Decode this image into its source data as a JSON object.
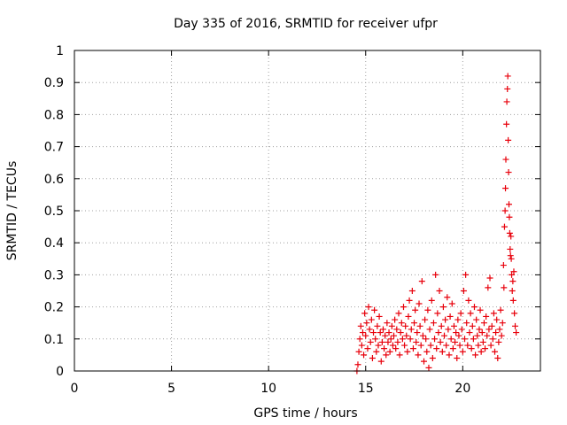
{
  "chart_data": {
    "type": "scatter",
    "title": "Day 335 of 2016, SRMTID for receiver ufpr",
    "xlabel": "GPS time / hours",
    "ylabel": "SRMTID / TECUs",
    "xlim": [
      0,
      24
    ],
    "ylim": [
      0,
      1
    ],
    "x_ticks": [
      0,
      5,
      10,
      15,
      20
    ],
    "x_tick_labels": [
      "0",
      "5",
      "10",
      "15",
      "20"
    ],
    "y_ticks": [
      0,
      0.1,
      0.2,
      0.3,
      0.4,
      0.5,
      0.6,
      0.7,
      0.8,
      0.9,
      1
    ],
    "y_tick_labels": [
      "0",
      "0.1",
      "0.2",
      "0.3",
      "0.4",
      "0.5",
      "0.6",
      "0.7",
      "0.8",
      "0.9",
      "1"
    ],
    "grid": true,
    "marker": "+",
    "series": [
      {
        "name": "SRMTID",
        "color": "#e8000b",
        "points": [
          [
            14.55,
            0.0
          ],
          [
            14.6,
            0.02
          ],
          [
            14.65,
            0.06
          ],
          [
            14.7,
            0.1
          ],
          [
            14.75,
            0.14
          ],
          [
            14.8,
            0.08
          ],
          [
            14.85,
            0.12
          ],
          [
            14.9,
            0.05
          ],
          [
            14.95,
            0.18
          ],
          [
            15.0,
            0.11
          ],
          [
            15.05,
            0.15
          ],
          [
            15.1,
            0.07
          ],
          [
            15.15,
            0.2
          ],
          [
            15.2,
            0.13
          ],
          [
            15.25,
            0.09
          ],
          [
            15.3,
            0.16
          ],
          [
            15.35,
            0.04
          ],
          [
            15.4,
            0.12
          ],
          [
            15.45,
            0.19
          ],
          [
            15.5,
            0.1
          ],
          [
            15.55,
            0.06
          ],
          [
            15.6,
            0.14
          ],
          [
            15.65,
            0.08
          ],
          [
            15.7,
            0.17
          ],
          [
            15.75,
            0.12
          ],
          [
            15.8,
            0.03
          ],
          [
            15.85,
            0.09
          ],
          [
            15.9,
            0.13
          ],
          [
            15.95,
            0.07
          ],
          [
            16.0,
            0.11
          ],
          [
            16.05,
            0.05
          ],
          [
            16.1,
            0.15
          ],
          [
            16.15,
            0.09
          ],
          [
            16.2,
            0.12
          ],
          [
            16.25,
            0.06
          ],
          [
            16.3,
            0.1
          ],
          [
            16.35,
            0.14
          ],
          [
            16.4,
            0.08
          ],
          [
            16.45,
            0.11
          ],
          [
            16.5,
            0.16
          ],
          [
            16.55,
            0.07
          ],
          [
            16.6,
            0.13
          ],
          [
            16.65,
            0.09
          ],
          [
            16.7,
            0.18
          ],
          [
            16.75,
            0.05
          ],
          [
            16.8,
            0.12
          ],
          [
            16.85,
            0.15
          ],
          [
            16.9,
            0.1
          ],
          [
            16.95,
            0.2
          ],
          [
            17.0,
            0.08
          ],
          [
            17.05,
            0.14
          ],
          [
            17.1,
            0.11
          ],
          [
            17.15,
            0.06
          ],
          [
            17.2,
            0.17
          ],
          [
            17.25,
            0.22
          ],
          [
            17.3,
            0.1
          ],
          [
            17.35,
            0.13
          ],
          [
            17.4,
            0.25
          ],
          [
            17.45,
            0.07
          ],
          [
            17.5,
            0.15
          ],
          [
            17.55,
            0.19
          ],
          [
            17.6,
            0.09
          ],
          [
            17.65,
            0.12
          ],
          [
            17.7,
            0.05
          ],
          [
            17.75,
            0.21
          ],
          [
            17.8,
            0.14
          ],
          [
            17.85,
            0.08
          ],
          [
            17.9,
            0.28
          ],
          [
            17.95,
            0.11
          ],
          [
            18.0,
            0.03
          ],
          [
            18.05,
            0.16
          ],
          [
            18.1,
            0.1
          ],
          [
            18.15,
            0.06
          ],
          [
            18.2,
            0.19
          ],
          [
            18.25,
            0.01
          ],
          [
            18.3,
            0.13
          ],
          [
            18.35,
            0.08
          ],
          [
            18.4,
            0.22
          ],
          [
            18.45,
            0.04
          ],
          [
            18.5,
            0.15
          ],
          [
            18.55,
            0.1
          ],
          [
            18.6,
            0.3
          ],
          [
            18.65,
            0.07
          ],
          [
            18.7,
            0.18
          ],
          [
            18.75,
            0.12
          ],
          [
            18.8,
            0.25
          ],
          [
            18.85,
            0.09
          ],
          [
            18.9,
            0.14
          ],
          [
            18.95,
            0.06
          ],
          [
            19.0,
            0.2
          ],
          [
            19.05,
            0.11
          ],
          [
            19.1,
            0.16
          ],
          [
            19.15,
            0.08
          ],
          [
            19.2,
            0.23
          ],
          [
            19.25,
            0.13
          ],
          [
            19.3,
            0.05
          ],
          [
            19.35,
            0.17
          ],
          [
            19.4,
            0.1
          ],
          [
            19.45,
            0.21
          ],
          [
            19.5,
            0.07
          ],
          [
            19.55,
            0.14
          ],
          [
            19.6,
            0.09
          ],
          [
            19.65,
            0.12
          ],
          [
            19.7,
            0.04
          ],
          [
            19.75,
            0.16
          ],
          [
            19.8,
            0.11
          ],
          [
            19.85,
            0.08
          ],
          [
            19.9,
            0.18
          ],
          [
            19.95,
            0.13
          ],
          [
            20.0,
            0.06
          ],
          [
            20.05,
            0.25
          ],
          [
            20.1,
            0.1
          ],
          [
            20.15,
            0.3
          ],
          [
            20.2,
            0.15
          ],
          [
            20.25,
            0.08
          ],
          [
            20.3,
            0.22
          ],
          [
            20.35,
            0.12
          ],
          [
            20.4,
            0.18
          ],
          [
            20.45,
            0.07
          ],
          [
            20.5,
            0.14
          ],
          [
            20.55,
            0.1
          ],
          [
            20.6,
            0.2
          ],
          [
            20.65,
            0.05
          ],
          [
            20.7,
            0.16
          ],
          [
            20.75,
            0.11
          ],
          [
            20.8,
            0.08
          ],
          [
            20.85,
            0.13
          ],
          [
            20.9,
            0.19
          ],
          [
            20.95,
            0.06
          ],
          [
            21.0,
            0.12
          ],
          [
            21.05,
            0.09
          ],
          [
            21.1,
            0.15
          ],
          [
            21.15,
            0.07
          ],
          [
            21.2,
            0.17
          ],
          [
            21.25,
            0.11
          ],
          [
            21.3,
            0.26
          ],
          [
            21.35,
            0.13
          ],
          [
            21.4,
            0.29
          ],
          [
            21.45,
            0.08
          ],
          [
            21.5,
            0.14
          ],
          [
            21.55,
            0.1
          ],
          [
            21.6,
            0.18
          ],
          [
            21.65,
            0.06
          ],
          [
            21.7,
            0.12
          ],
          [
            21.75,
            0.16
          ],
          [
            21.8,
            0.04
          ],
          [
            21.85,
            0.09
          ],
          [
            21.9,
            0.13
          ],
          [
            21.95,
            0.19
          ],
          [
            22.0,
            0.11
          ],
          [
            22.05,
            0.15
          ],
          [
            22.1,
            0.33
          ],
          [
            22.12,
            0.26
          ],
          [
            22.15,
            0.45
          ],
          [
            22.18,
            0.5
          ],
          [
            22.2,
            0.57
          ],
          [
            22.22,
            0.66
          ],
          [
            22.25,
            0.77
          ],
          [
            22.27,
            0.84
          ],
          [
            22.3,
            0.88
          ],
          [
            22.32,
            0.92
          ],
          [
            22.34,
            0.72
          ],
          [
            22.36,
            0.62
          ],
          [
            22.38,
            0.52
          ],
          [
            22.4,
            0.48
          ],
          [
            22.42,
            0.43
          ],
          [
            22.44,
            0.38
          ],
          [
            22.46,
            0.36
          ],
          [
            22.48,
            0.42
          ],
          [
            22.5,
            0.35
          ],
          [
            22.52,
            0.3
          ],
          [
            22.55,
            0.25
          ],
          [
            22.58,
            0.28
          ],
          [
            22.6,
            0.22
          ],
          [
            22.63,
            0.31
          ],
          [
            22.66,
            0.18
          ],
          [
            22.7,
            0.14
          ],
          [
            22.75,
            0.12
          ]
        ]
      }
    ]
  }
}
